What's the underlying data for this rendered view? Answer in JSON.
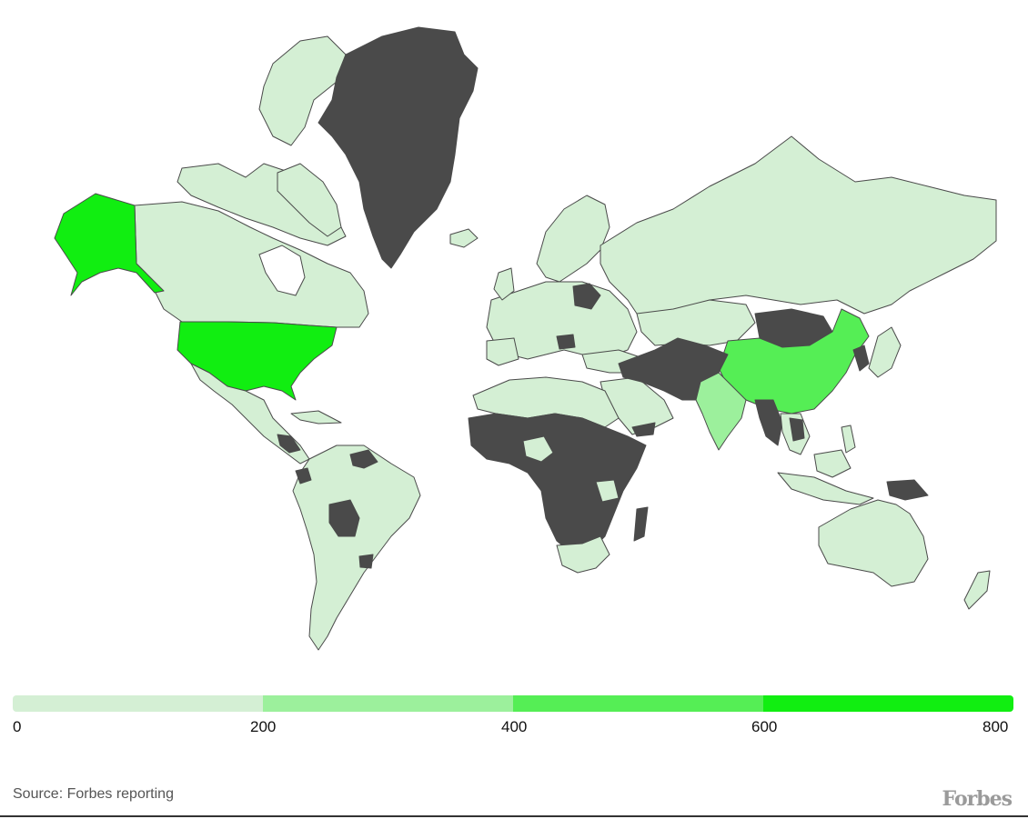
{
  "map": {
    "colors": {
      "bin_0_200": "#d4efd4",
      "bin_200_400": "#9cf09c",
      "bin_400_600": "#55ee55",
      "bin_600_800": "#11ee11",
      "no_data": "#4a4a4a",
      "border": "#4a4a4a",
      "background": "#ffffff"
    },
    "highlighted_regions": [
      {
        "name": "Alaska",
        "bin": "600-800"
      },
      {
        "name": "United States",
        "bin": "600-800"
      },
      {
        "name": "China",
        "bin": "400-600"
      },
      {
        "name": "India",
        "bin": "200-400"
      },
      {
        "name": "Greenland",
        "bin": "no data"
      },
      {
        "name": "Mongolia",
        "bin": "no data"
      },
      {
        "name": "Afghanistan / Iran / Pakistan region",
        "bin": "no data"
      },
      {
        "name": "Central Africa",
        "bin": "no data"
      }
    ]
  },
  "legend": {
    "ticks": [
      "0",
      "200",
      "400",
      "600",
      "800"
    ],
    "colors": [
      "#d4efd4",
      "#9cf09c",
      "#55ee55",
      "#11ee11"
    ]
  },
  "footer": {
    "source": "Source: Forbes reporting",
    "brand": "Forbes"
  }
}
